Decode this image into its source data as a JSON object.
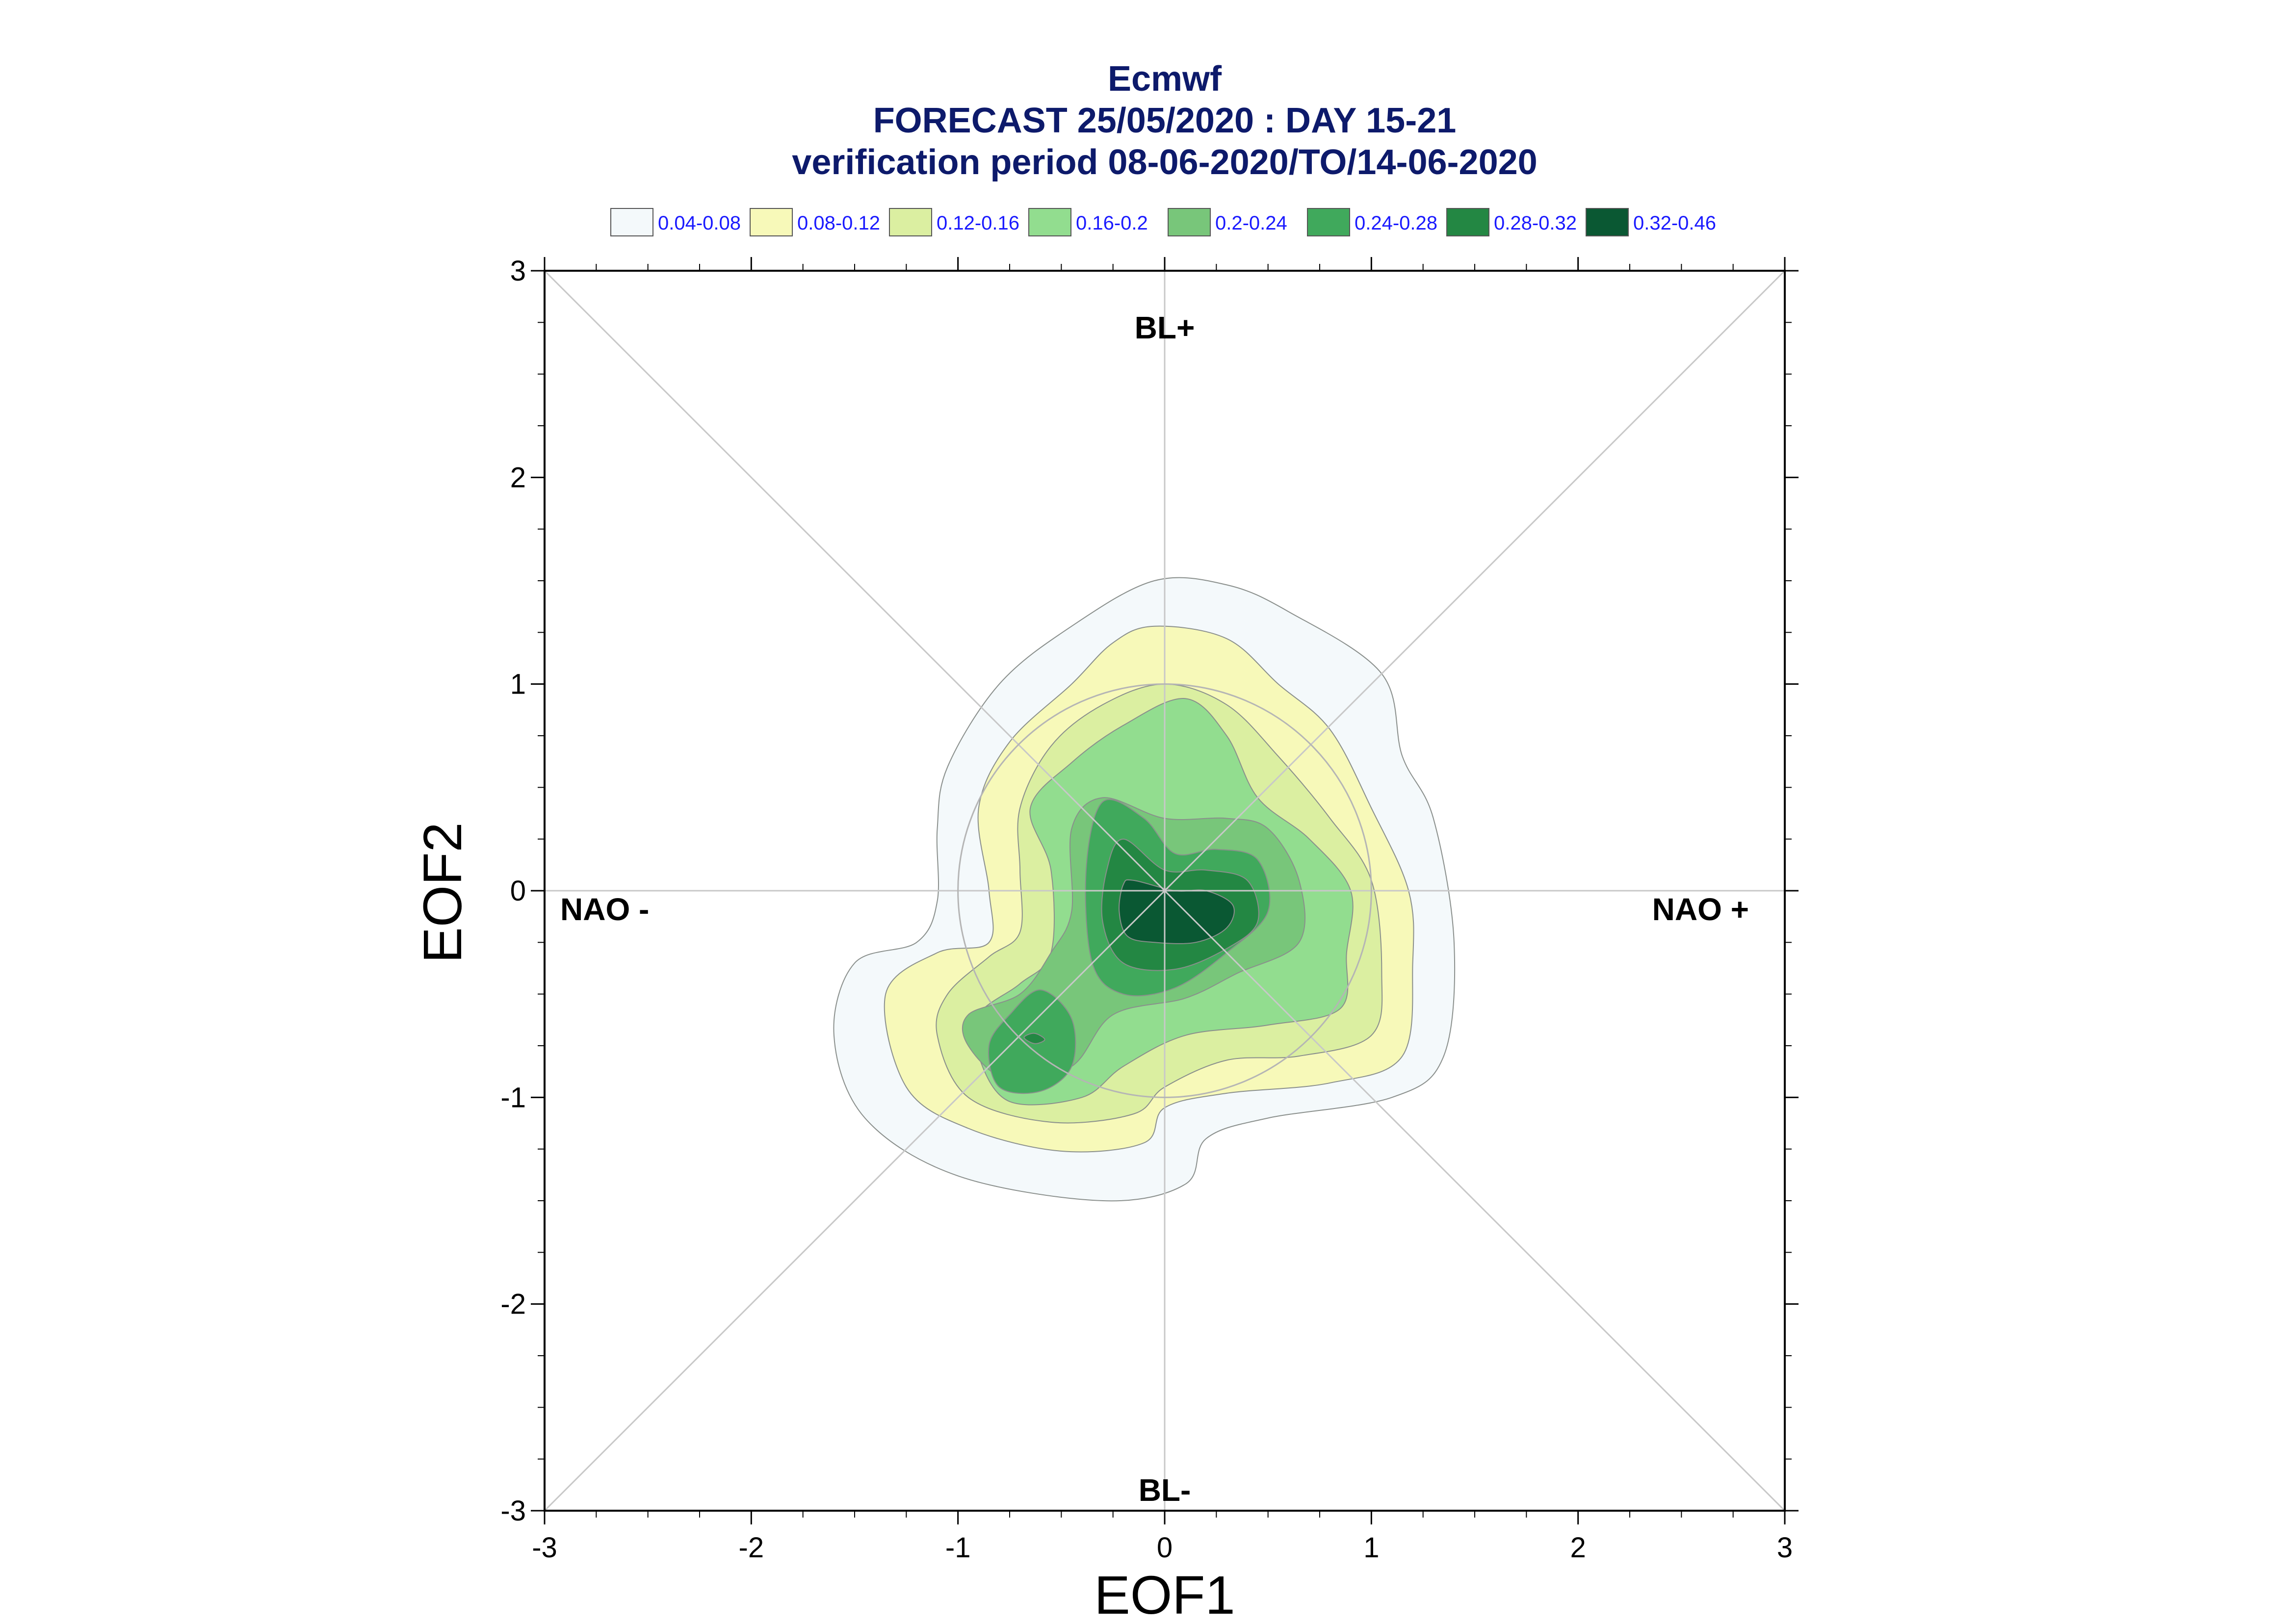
{
  "chart_data": {
    "type": "contour",
    "title_lines": [
      "Ecmwf",
      "FORECAST 25/05/2020 : DAY 15-21",
      "verification period 08-06-2020/TO/14-06-2020"
    ],
    "xlabel": "EOF1",
    "ylabel": "EOF2",
    "xlim": [
      -3,
      3
    ],
    "ylim": [
      -3,
      3
    ],
    "x_ticks": [
      "-3",
      "-2",
      "-1",
      "0",
      "1",
      "2",
      "3"
    ],
    "y_ticks": [
      "-3",
      "-2",
      "-1",
      "0",
      "1",
      "2",
      "3"
    ],
    "regimes": {
      "top": "BL+",
      "bottom": "BL-",
      "left": "NAO -",
      "right": "NAO +"
    },
    "legend": [
      {
        "label": "0.04-0.08",
        "color": "#f4f9fb"
      },
      {
        "label": "0.08-0.12",
        "color": "#f7f9b9"
      },
      {
        "label": "0.12-0.16",
        "color": "#dbefa1"
      },
      {
        "label": "0.16-0.2",
        "color": "#92dd8f"
      },
      {
        "label": "0.2-0.24",
        "color": "#78c67a"
      },
      {
        "label": "0.24-0.28",
        "color": "#40a95c"
      },
      {
        "label": "0.28-0.32",
        "color": "#238743"
      },
      {
        "label": "0.32-0.46",
        "color": "#0a5833"
      }
    ],
    "density_levels": [
      {
        "level": "0.04-0.08",
        "outline": [
          [
            -0.05,
            1.5
          ],
          [
            0.3,
            1.48
          ],
          [
            0.6,
            1.35
          ],
          [
            1.05,
            1.05
          ],
          [
            1.15,
            0.65
          ],
          [
            1.3,
            0.35
          ],
          [
            1.4,
            -0.25
          ],
          [
            1.35,
            -0.8
          ],
          [
            1.1,
            -1.0
          ],
          [
            0.5,
            -1.1
          ],
          [
            0.2,
            -1.2
          ],
          [
            0.1,
            -1.42
          ],
          [
            -0.3,
            -1.5
          ],
          [
            -1.0,
            -1.38
          ],
          [
            -1.45,
            -1.1
          ],
          [
            -1.6,
            -0.7
          ],
          [
            -1.5,
            -0.35
          ],
          [
            -1.2,
            -0.25
          ],
          [
            -1.1,
            -0.05
          ],
          [
            -1.1,
            0.3
          ],
          [
            -1.05,
            0.6
          ],
          [
            -0.8,
            1.0
          ],
          [
            -0.45,
            1.28
          ]
        ]
      },
      {
        "level": "0.08-0.12",
        "outline": [
          [
            -0.05,
            1.28
          ],
          [
            0.3,
            1.22
          ],
          [
            0.55,
            1.0
          ],
          [
            0.8,
            0.78
          ],
          [
            1.0,
            0.4
          ],
          [
            1.18,
            0.0
          ],
          [
            1.2,
            -0.35
          ],
          [
            1.15,
            -0.8
          ],
          [
            0.8,
            -0.93
          ],
          [
            0.3,
            -0.98
          ],
          [
            0.0,
            -1.05
          ],
          [
            -0.1,
            -1.22
          ],
          [
            -0.5,
            -1.26
          ],
          [
            -0.95,
            -1.15
          ],
          [
            -1.25,
            -0.95
          ],
          [
            -1.35,
            -0.5
          ],
          [
            -1.1,
            -0.3
          ],
          [
            -0.85,
            -0.25
          ],
          [
            -0.85,
            0.0
          ],
          [
            -0.9,
            0.4
          ],
          [
            -0.75,
            0.72
          ],
          [
            -0.45,
            1.0
          ],
          [
            -0.25,
            1.2
          ]
        ]
      },
      {
        "level": "0.12-0.16",
        "outline": [
          [
            0.0,
            1.0
          ],
          [
            0.3,
            0.9
          ],
          [
            0.55,
            0.65
          ],
          [
            0.8,
            0.35
          ],
          [
            1.0,
            0.05
          ],
          [
            1.05,
            -0.4
          ],
          [
            1.0,
            -0.7
          ],
          [
            0.65,
            -0.8
          ],
          [
            0.3,
            -0.82
          ],
          [
            0.0,
            -0.95
          ],
          [
            -0.15,
            -1.08
          ],
          [
            -0.55,
            -1.12
          ],
          [
            -0.95,
            -1.0
          ],
          [
            -1.1,
            -0.7
          ],
          [
            -1.05,
            -0.5
          ],
          [
            -0.85,
            -0.32
          ],
          [
            -0.7,
            -0.2
          ],
          [
            -0.7,
            0.1
          ],
          [
            -0.7,
            0.4
          ],
          [
            -0.55,
            0.7
          ],
          [
            -0.3,
            0.9
          ]
        ]
      },
      {
        "level": "0.16-0.2",
        "outline": [
          [
            0.1,
            0.93
          ],
          [
            0.3,
            0.75
          ],
          [
            0.45,
            0.45
          ],
          [
            0.7,
            0.25
          ],
          [
            0.9,
            0.0
          ],
          [
            0.88,
            -0.3
          ],
          [
            0.85,
            -0.57
          ],
          [
            0.5,
            -0.65
          ],
          [
            0.1,
            -0.7
          ],
          [
            -0.2,
            -0.85
          ],
          [
            -0.4,
            -1.0
          ],
          [
            -0.75,
            -1.02
          ],
          [
            -0.9,
            -0.8
          ],
          [
            -0.9,
            -0.6
          ],
          [
            -0.7,
            -0.45
          ],
          [
            -0.55,
            -0.3
          ],
          [
            -0.55,
            0.1
          ],
          [
            -0.65,
            0.4
          ],
          [
            -0.45,
            0.62
          ],
          [
            -0.2,
            0.8
          ]
        ]
      },
      {
        "level": "0.2-0.24",
        "outline": [
          [
            -0.3,
            0.45
          ],
          [
            0.0,
            0.35
          ],
          [
            0.3,
            0.35
          ],
          [
            0.5,
            0.3
          ],
          [
            0.65,
            0.05
          ],
          [
            0.65,
            -0.25
          ],
          [
            0.35,
            -0.4
          ],
          [
            0.1,
            -0.52
          ],
          [
            -0.25,
            -0.6
          ],
          [
            -0.45,
            -0.85
          ],
          [
            -0.75,
            -0.92
          ],
          [
            -0.95,
            -0.75
          ],
          [
            -0.95,
            -0.6
          ],
          [
            -0.7,
            -0.5
          ],
          [
            -0.55,
            -0.3
          ],
          [
            -0.45,
            -0.1
          ],
          [
            -0.45,
            0.3
          ]
        ]
      },
      {
        "level": "0.24-0.28",
        "outline": [
          [
            -0.3,
            0.43
          ],
          [
            -0.1,
            0.35
          ],
          [
            0.05,
            0.18
          ],
          [
            0.25,
            0.2
          ],
          [
            0.45,
            0.15
          ],
          [
            0.5,
            -0.1
          ],
          [
            0.3,
            -0.3
          ],
          [
            0.05,
            -0.47
          ],
          [
            -0.2,
            -0.5
          ],
          [
            -0.35,
            -0.35
          ],
          [
            -0.38,
            0.1
          ]
        ]
      },
      {
        "level": "0.24-0.28",
        "outline": [
          [
            -0.6,
            -0.48
          ],
          [
            -0.45,
            -0.62
          ],
          [
            -0.45,
            -0.85
          ],
          [
            -0.6,
            -0.97
          ],
          [
            -0.8,
            -0.95
          ],
          [
            -0.85,
            -0.75
          ],
          [
            -0.75,
            -0.6
          ]
        ]
      },
      {
        "level": "0.28-0.32",
        "outline": [
          [
            -0.2,
            0.25
          ],
          [
            0.0,
            0.1
          ],
          [
            0.2,
            0.1
          ],
          [
            0.4,
            0.05
          ],
          [
            0.45,
            -0.15
          ],
          [
            0.3,
            -0.28
          ],
          [
            0.05,
            -0.38
          ],
          [
            -0.2,
            -0.35
          ],
          [
            -0.3,
            -0.15
          ],
          [
            -0.28,
            0.1
          ]
        ]
      },
      {
        "level": "0.28-0.32",
        "outline": [
          [
            -0.63,
            -0.69
          ],
          [
            -0.58,
            -0.72
          ],
          [
            -0.63,
            -0.74
          ],
          [
            -0.68,
            -0.71
          ]
        ]
      },
      {
        "level": "0.32-0.46",
        "outline": [
          [
            -0.15,
            0.05
          ],
          [
            0.05,
            0.0
          ],
          [
            0.2,
            0.0
          ],
          [
            0.33,
            -0.07
          ],
          [
            0.3,
            -0.18
          ],
          [
            0.15,
            -0.25
          ],
          [
            -0.05,
            -0.25
          ],
          [
            -0.18,
            -0.22
          ],
          [
            -0.22,
            -0.1
          ],
          [
            -0.2,
            0.03
          ]
        ]
      }
    ],
    "reference_circle_radius": 1,
    "diagonal_lines": true,
    "grid": false,
    "legend_position": "top"
  }
}
